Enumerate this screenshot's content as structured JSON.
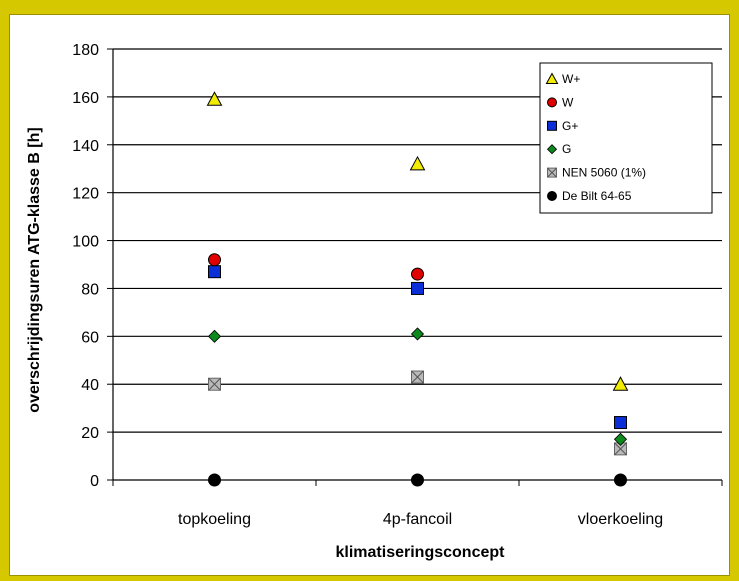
{
  "chart_data": {
    "type": "scatter",
    "title": "",
    "xlabel": "klimatiseringsconcept",
    "ylabel": "overschrijdingsuren ATG-klasse B [h]",
    "categories": [
      "topkoeling",
      "4p-fancoil",
      "vloerkoeling"
    ],
    "ylim": [
      0,
      180
    ],
    "yticks": [
      0,
      20,
      40,
      60,
      80,
      100,
      120,
      140,
      160,
      180
    ],
    "grid": true,
    "legend_position": "top-right",
    "series": [
      {
        "name": "W+",
        "marker": "triangle",
        "color": "#f2ec00",
        "values": [
          159,
          132,
          40
        ]
      },
      {
        "name": "W",
        "marker": "circle",
        "color": "#e00000",
        "values": [
          92,
          86,
          null
        ]
      },
      {
        "name": "G+",
        "marker": "square",
        "color": "#0a2fd8",
        "values": [
          87,
          80,
          24
        ]
      },
      {
        "name": "G",
        "marker": "diamond",
        "color": "#0c8a1c",
        "values": [
          60,
          61,
          17
        ]
      },
      {
        "name": "NEN 5060 (1%)",
        "marker": "crossed-square",
        "color": "#b9b9b9",
        "values": [
          40,
          43,
          13
        ]
      },
      {
        "name": "De Bilt 64-65",
        "marker": "circle",
        "color": "#000000",
        "values": [
          0,
          0,
          0
        ]
      }
    ]
  }
}
